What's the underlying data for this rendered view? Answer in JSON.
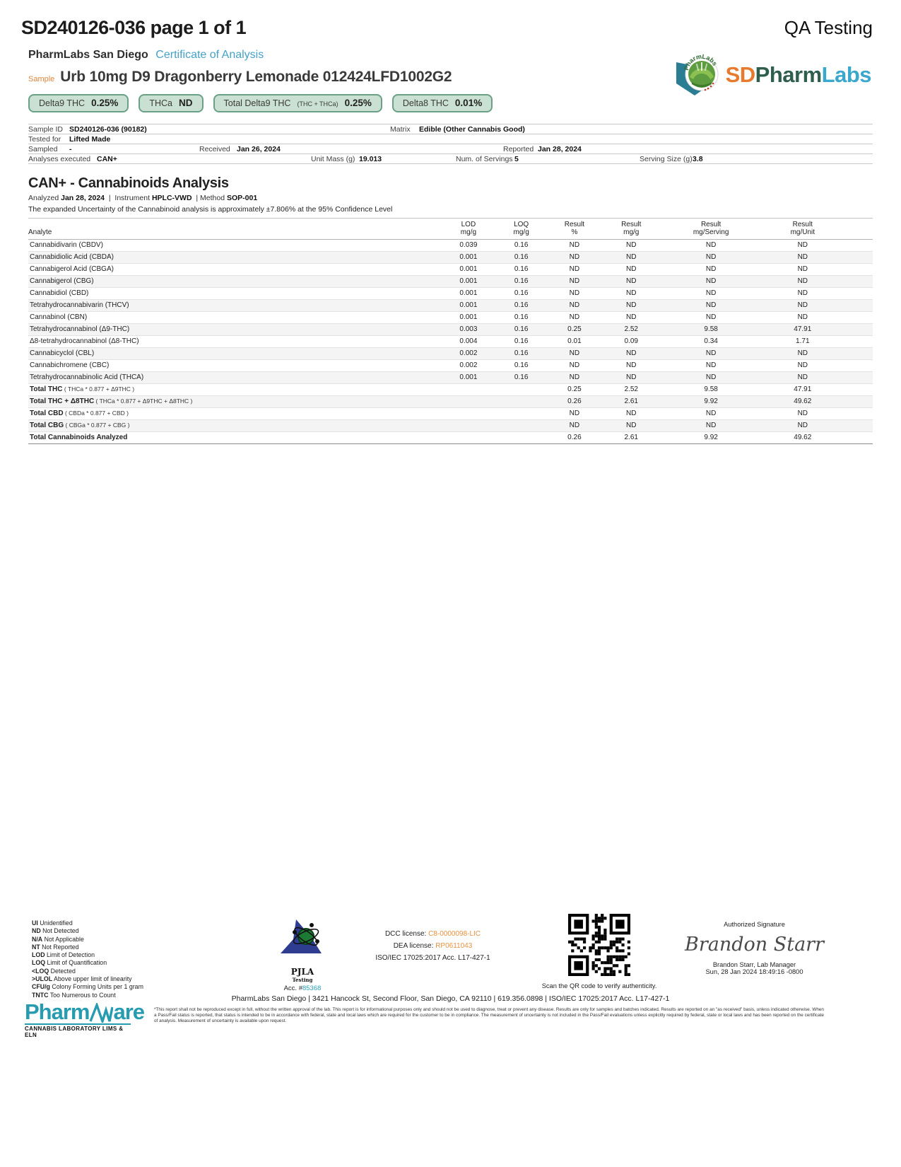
{
  "page": {
    "report_id": "SD240126-036 page 1 of 1",
    "qa_label": "QA Testing"
  },
  "header": {
    "lab_name": "PharmLabs San Diego",
    "doc_type": "Certificate of Analysis",
    "sample_label": "Sample",
    "sample_name": "Urb 10mg D9 Dragonberry Lemonade 012424LFD1002G2",
    "brand": {
      "sd": "SD",
      "pharm": "Pharm",
      "labs": "Labs"
    }
  },
  "badges": [
    {
      "label": "Delta9 THC",
      "sub": "",
      "value": "0.25%"
    },
    {
      "label": "THCa",
      "sub": "",
      "value": "ND"
    },
    {
      "label": "Total Delta9 THC",
      "sub": "(THC + THCa)",
      "value": "0.25%"
    },
    {
      "label": "Delta8 THC",
      "sub": "",
      "value": "0.01%"
    }
  ],
  "meta": {
    "sample_id_label": "Sample ID",
    "sample_id": "SD240126-036 (90182)",
    "matrix_label": "Matrix",
    "matrix": "Edible (Other Cannabis Good)",
    "tested_for_label": "Tested for",
    "tested_for": "Lifted Made",
    "sampled_label": "Sampled",
    "sampled": "-",
    "received_label": "Received",
    "received": "Jan 26, 2024",
    "reported_label": "Reported",
    "reported": "Jan 28, 2024",
    "analyses_label": "Analyses executed",
    "analyses": "CAN+",
    "unit_mass_label": "Unit Mass (g)",
    "unit_mass": "19.013",
    "servings_label": "Num. of Servings",
    "servings": "5",
    "serving_size_label": "Serving Size (g)",
    "serving_size": "3.8"
  },
  "analysis": {
    "title": "CAN+ - Cannabinoids Analysis",
    "analyzed_label": "Analyzed",
    "analyzed": "Jan 28, 2024",
    "instrument_label": "Instrument",
    "instrument": "HPLC-VWD",
    "method_label": "Method",
    "method": "SOP-001",
    "note": "The expanded Uncertainty of the Cannabinoid analysis is approximately ±7.806% at the 95% Confidence Level",
    "columns": [
      {
        "l1": "Analyte",
        "l2": ""
      },
      {
        "l1": "LOD",
        "l2": "mg/g"
      },
      {
        "l1": "LOQ",
        "l2": "mg/g"
      },
      {
        "l1": "Result",
        "l2": "%"
      },
      {
        "l1": "Result",
        "l2": "mg/g"
      },
      {
        "l1": "Result",
        "l2": "mg/Serving"
      },
      {
        "l1": "Result",
        "l2": "mg/Unit"
      }
    ],
    "rows": [
      {
        "name": "Cannabidivarin (CBDV)",
        "lod": "0.039",
        "loq": "0.16",
        "pct": "ND",
        "mgg": "ND",
        "serving": "ND",
        "unit": "ND"
      },
      {
        "name": "Cannabidiolic Acid (CBDA)",
        "lod": "0.001",
        "loq": "0.16",
        "pct": "ND",
        "mgg": "ND",
        "serving": "ND",
        "unit": "ND"
      },
      {
        "name": "Cannabigerol Acid (CBGA)",
        "lod": "0.001",
        "loq": "0.16",
        "pct": "ND",
        "mgg": "ND",
        "serving": "ND",
        "unit": "ND"
      },
      {
        "name": "Cannabigerol (CBG)",
        "lod": "0.001",
        "loq": "0.16",
        "pct": "ND",
        "mgg": "ND",
        "serving": "ND",
        "unit": "ND"
      },
      {
        "name": "Cannabidiol (CBD)",
        "lod": "0.001",
        "loq": "0.16",
        "pct": "ND",
        "mgg": "ND",
        "serving": "ND",
        "unit": "ND"
      },
      {
        "name": "Tetrahydrocannabivarin (THCV)",
        "lod": "0.001",
        "loq": "0.16",
        "pct": "ND",
        "mgg": "ND",
        "serving": "ND",
        "unit": "ND"
      },
      {
        "name": "Cannabinol (CBN)",
        "lod": "0.001",
        "loq": "0.16",
        "pct": "ND",
        "mgg": "ND",
        "serving": "ND",
        "unit": "ND"
      },
      {
        "name": "Tetrahydrocannabinol (Δ9-THC)",
        "lod": "0.003",
        "loq": "0.16",
        "pct": "0.25",
        "mgg": "2.52",
        "serving": "9.58",
        "unit": "47.91"
      },
      {
        "name": "Δ8-tetrahydrocannabinol (Δ8-THC)",
        "lod": "0.004",
        "loq": "0.16",
        "pct": "0.01",
        "mgg": "0.09",
        "serving": "0.34",
        "unit": "1.71"
      },
      {
        "name": "Cannabicyclol (CBL)",
        "lod": "0.002",
        "loq": "0.16",
        "pct": "ND",
        "mgg": "ND",
        "serving": "ND",
        "unit": "ND"
      },
      {
        "name": "Cannabichromene (CBC)",
        "lod": "0.002",
        "loq": "0.16",
        "pct": "ND",
        "mgg": "ND",
        "serving": "ND",
        "unit": "ND"
      },
      {
        "name": "Tetrahydrocannabinolic Acid (THCA)",
        "lod": "0.001",
        "loq": "0.16",
        "pct": "ND",
        "mgg": "ND",
        "serving": "ND",
        "unit": "ND"
      }
    ],
    "totals": [
      {
        "name": "Total THC",
        "formula": "( THCa * 0.877 + Δ9THC )",
        "pct": "0.25",
        "mgg": "2.52",
        "serving": "9.58",
        "unit": "47.91"
      },
      {
        "name": "Total THC + Δ8THC",
        "formula": "( THCa * 0.877 + Δ9THC + Δ8THC )",
        "pct": "0.26",
        "mgg": "2.61",
        "serving": "9.92",
        "unit": "49.62"
      },
      {
        "name": "Total CBD",
        "formula": "( CBDa * 0.877 + CBD )",
        "pct": "ND",
        "mgg": "ND",
        "serving": "ND",
        "unit": "ND"
      },
      {
        "name": "Total CBG",
        "formula": "( CBGa * 0.877 + CBG )",
        "pct": "ND",
        "mgg": "ND",
        "serving": "ND",
        "unit": "ND"
      },
      {
        "name": "Total Cannabinoids Analyzed",
        "formula": "",
        "pct": "0.26",
        "mgg": "2.61",
        "serving": "9.92",
        "unit": "49.62"
      }
    ]
  },
  "legend": [
    {
      "abbr": "UI",
      "text": "Unidentified"
    },
    {
      "abbr": "ND",
      "text": "Not Detected"
    },
    {
      "abbr": "N/A",
      "text": "Not Applicable"
    },
    {
      "abbr": "NT",
      "text": "Not Reported"
    },
    {
      "abbr": "LOD",
      "text": "Limit of Detection"
    },
    {
      "abbr": "LOQ",
      "text": "Limit of Quantification"
    },
    {
      "abbr": "<LOQ",
      "text": "Detected"
    },
    {
      "abbr": ">ULOL",
      "text": "Above upper limit of linearity"
    },
    {
      "abbr": "CFU/g",
      "text": "Colony Forming Units per 1 gram"
    },
    {
      "abbr": "TNTC",
      "text": "Too Numerous to Count"
    }
  ],
  "footer": {
    "pjla": {
      "name": "PJLA",
      "sub": "Testing",
      "acc_label": "Acc. #",
      "acc": "85368"
    },
    "licenses": {
      "dcc_label": "DCC license:",
      "dcc": "C8-0000098-LIC",
      "dea_label": "DEA license:",
      "dea": "RP0611043",
      "iso": "ISO/IEC 17025:2017 Acc. L17-427-1"
    },
    "qr_caption": "Scan the QR code to verify authenticity.",
    "signature": {
      "heading": "Authorized Signature",
      "script": "Brandon Starr",
      "name": "Brandon Starr, Lab Manager",
      "date": "Sun, 28 Jan 2024 18:49:16 -0800"
    },
    "address": "PharmLabs San Diego | 3421 Hancock St, Second Floor, San Diego, CA 92110 | 619.356.0898 | ISO/IEC 17025:2017 Acc. L17-427-1",
    "disclaimer": "*This report shall not be reproduced except in full, without the written approval of the lab. This report is for informational purposes only and should not be used to diagnose, treat or prevent any disease. Results are only for samples and batches indicated. Results are reported on an \"as received\" basis, unless indicated otherwise. When a Pass/Fail status is reported, that status is intended to be in accordance with federal, state and local laws which are required for the customer to be in compliance. The measurement of uncertainty is not included in the Pass/Fail evaluations unless explicitly required by federal, state or local laws and has been reported on the certificate of analysis. Measurement of uncertainty is available upon request.",
    "pharmware": {
      "pharm": "Pharm",
      "are": "are",
      "tagline": "CANNABIS LABORATORY LIMS & ELN"
    }
  },
  "colors": {
    "nd_green": "#3f8a63",
    "result_blue": "#3950a0",
    "badge_bg": "#c9e0d2",
    "badge_border": "#6aa186",
    "coa_blue": "#45a1c8",
    "license_orange": "#e8923f",
    "teal": "#279cb0"
  }
}
